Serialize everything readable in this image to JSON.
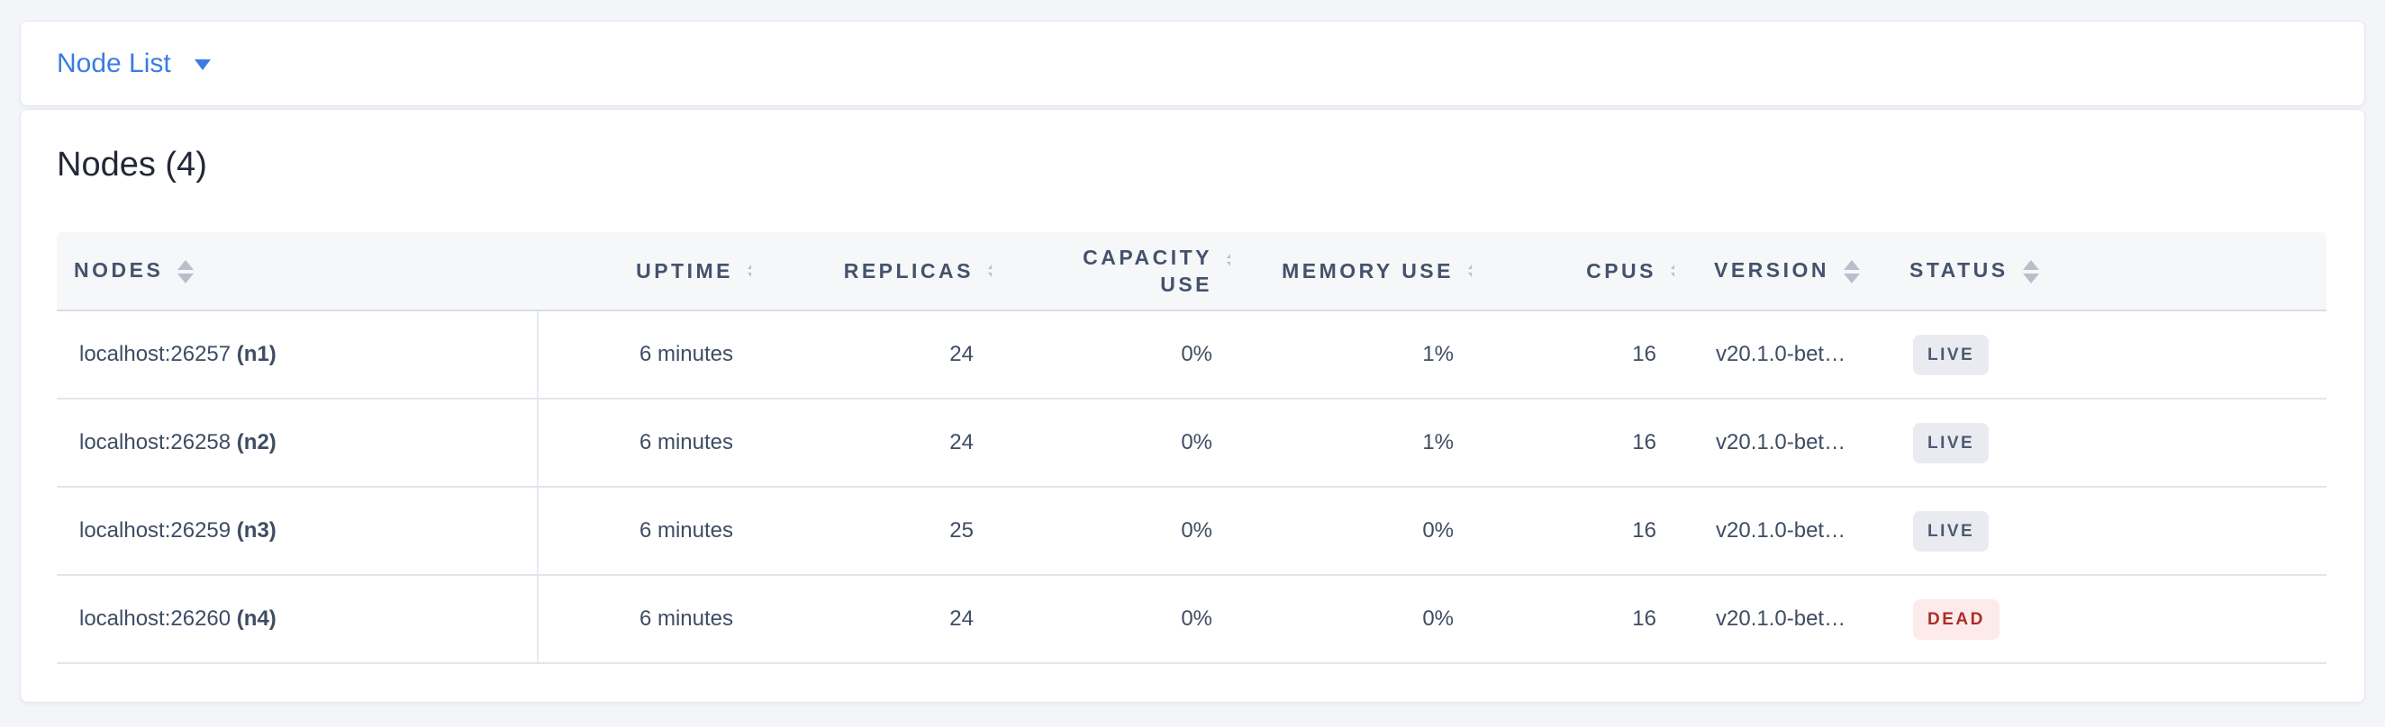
{
  "topbar": {
    "dropdown_label": "Node List"
  },
  "main": {
    "title": "Nodes (4)",
    "table": {
      "columns": [
        {
          "key": "nodes",
          "label": "NODES"
        },
        {
          "key": "uptime",
          "label": "UPTIME"
        },
        {
          "key": "replicas",
          "label": "REPLICAS"
        },
        {
          "key": "capacity_use",
          "label": "CAPACITY USE"
        },
        {
          "key": "memory_use",
          "label": "MEMORY USE"
        },
        {
          "key": "cpus",
          "label": "CPUS"
        },
        {
          "key": "version",
          "label": "VERSION"
        },
        {
          "key": "status",
          "label": "STATUS"
        }
      ],
      "rows": [
        {
          "nodes": {
            "address": "localhost:26257",
            "id": "(n1)"
          },
          "uptime": "6 minutes",
          "replicas": "24",
          "capacity_use": "0%",
          "memory_use": "1%",
          "cpus": "16",
          "version": "v20.1.0-bet…",
          "status": {
            "label": "LIVE",
            "variant": "live"
          }
        },
        {
          "nodes": {
            "address": "localhost:26258",
            "id": "(n2)"
          },
          "uptime": "6 minutes",
          "replicas": "24",
          "capacity_use": "0%",
          "memory_use": "1%",
          "cpus": "16",
          "version": "v20.1.0-bet…",
          "status": {
            "label": "LIVE",
            "variant": "live"
          }
        },
        {
          "nodes": {
            "address": "localhost:26259",
            "id": "(n3)"
          },
          "uptime": "6 minutes",
          "replicas": "25",
          "capacity_use": "0%",
          "memory_use": "0%",
          "cpus": "16",
          "version": "v20.1.0-bet…",
          "status": {
            "label": "LIVE",
            "variant": "live"
          }
        },
        {
          "nodes": {
            "address": "localhost:26260",
            "id": "(n4)"
          },
          "uptime": "6 minutes",
          "replicas": "24",
          "capacity_use": "0%",
          "memory_use": "0%",
          "cpus": "16",
          "version": "v20.1.0-bet…",
          "status": {
            "label": "DEAD",
            "variant": "dead"
          }
        }
      ]
    }
  },
  "icons": {
    "dropdown_caret": "caret-down-icon",
    "column_sort": "sort-arrows-icon"
  },
  "colors": {
    "accent_blue": "#3a7ce2",
    "page_background": "#f3f5f9",
    "header_text": "#45526b",
    "cell_text": "#3f4c63",
    "live_badge_bg": "#e9ebf1",
    "live_badge_text": "#4c5a73",
    "dead_badge_bg": "#fcebea",
    "dead_badge_text": "#aa2e27"
  }
}
